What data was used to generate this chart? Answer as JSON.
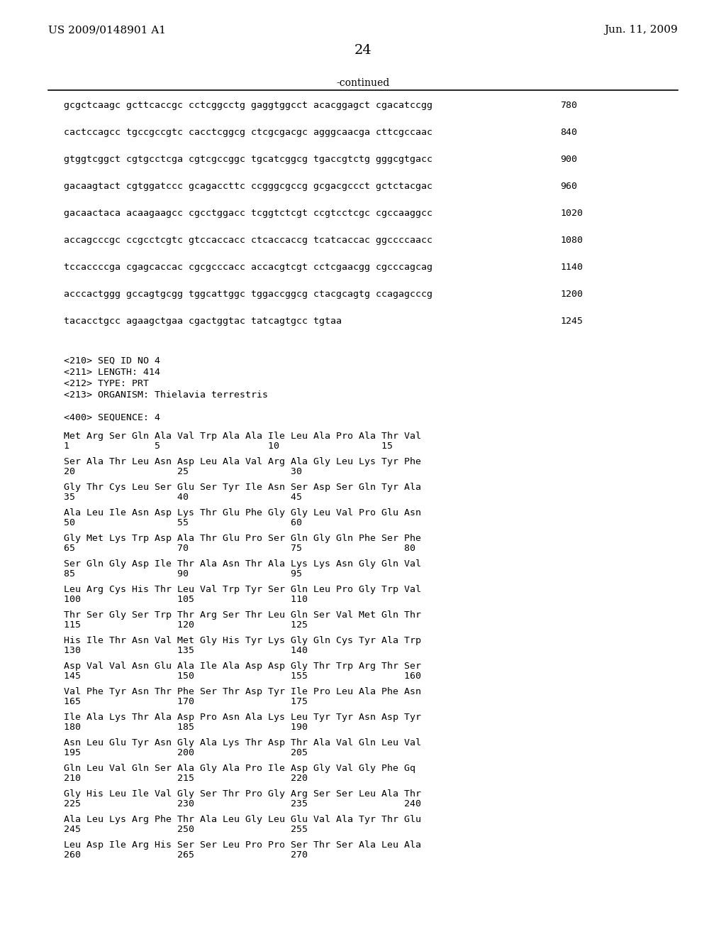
{
  "header_left": "US 2009/0148901 A1",
  "header_right": "Jun. 11, 2009",
  "page_number": "24",
  "continued_label": "-continued",
  "background_color": "#ffffff",
  "text_color": "#000000",
  "dna_lines": [
    [
      "gcgctcaagc gcttcaccgc cctcggcctg gaggtggcct acacggagct cgacatccgg",
      "780"
    ],
    [
      "cactccagcc tgccgccgtc cacctcggcg ctcgcgacgc agggcaacga cttcgccaac",
      "840"
    ],
    [
      "gtggtcggct cgtgcctcga cgtcgccggc tgcatcggcg tgaccgtctg gggcgtgacc",
      "900"
    ],
    [
      "gacaagtact cgtggatccc gcagaccttc ccgggcgccg gcgacgccct gctctacgac",
      "960"
    ],
    [
      "gacaactaca acaagaagcc cgcctggacc tcggtctcgt ccgtcctcgc cgccaaggcc",
      "1020"
    ],
    [
      "accagcccgc ccgcctcgtc gtccaccacc ctcaccaccg tcatcaccac ggccccaacc",
      "1080"
    ],
    [
      "tccaccccga cgagcaccac cgcgcccacc accacgtcgt cctcgaacgg cgcccagcag",
      "1140"
    ],
    [
      "acccactggg gccagtgcgg tggcattggc tggaccggcg ctacgcagtg ccagagcccg",
      "1200"
    ],
    [
      "tacacctgcc agaagctgaa cgactggtac tatcagtgcc tgtaa",
      "1245"
    ]
  ],
  "metadata_lines": [
    "<210> SEQ ID NO 4",
    "<211> LENGTH: 414",
    "<212> TYPE: PRT",
    "<213> ORGANISM: Thielavia terrestris"
  ],
  "sequence_label": "<400> SEQUENCE: 4",
  "protein_blocks": [
    {
      "seq_line": "Met Arg Ser Gln Ala Val Trp Ala Ala Ile Leu Ala Pro Ala Thr Val",
      "num_line": "1               5                   10                  15"
    },
    {
      "seq_line": "Ser Ala Thr Leu Asn Asp Leu Ala Val Arg Ala Gly Leu Lys Tyr Phe",
      "num_line": "20                  25                  30"
    },
    {
      "seq_line": "Gly Thr Cys Leu Ser Glu Ser Tyr Ile Asn Ser Asp Ser Gln Tyr Ala",
      "num_line": "35                  40                  45"
    },
    {
      "seq_line": "Ala Leu Ile Asn Asp Lys Thr Glu Phe Gly Gly Leu Val Pro Glu Asn",
      "num_line": "50                  55                  60"
    },
    {
      "seq_line": "Gly Met Lys Trp Asp Ala Thr Glu Pro Ser Gln Gly Gln Phe Ser Phe",
      "num_line": "65                  70                  75                  80"
    },
    {
      "seq_line": "Ser Gln Gly Asp Ile Thr Ala Asn Thr Ala Lys Lys Asn Gly Gln Val",
      "num_line": "85                  90                  95"
    },
    {
      "seq_line": "Leu Arg Cys His Thr Leu Val Trp Tyr Ser Gln Leu Pro Gly Trp Val",
      "num_line": "100                 105                 110"
    },
    {
      "seq_line": "Thr Ser Gly Ser Trp Thr Arg Ser Thr Leu Gln Ser Val Met Gln Thr",
      "num_line": "115                 120                 125"
    },
    {
      "seq_line": "His Ile Thr Asn Val Met Gly His Tyr Lys Gly Gln Cys Tyr Ala Trp",
      "num_line": "130                 135                 140"
    },
    {
      "seq_line": "Asp Val Val Asn Glu Ala Ile Ala Asp Asp Gly Thr Trp Arg Thr Ser",
      "num_line": "145                 150                 155                 160"
    },
    {
      "seq_line": "Val Phe Tyr Asn Thr Phe Ser Thr Asp Tyr Ile Pro Leu Ala Phe Asn",
      "num_line": "165                 170                 175"
    },
    {
      "seq_line": "Ile Ala Lys Thr Ala Asp Pro Asn Ala Lys Leu Tyr Tyr Asn Asp Tyr",
      "num_line": "180                 185                 190"
    },
    {
      "seq_line": "Asn Leu Glu Tyr Asn Gly Ala Lys Thr Asp Thr Ala Val Gln Leu Val",
      "num_line": "195                 200                 205"
    },
    {
      "seq_line": "Gln Leu Val Gln Ser Ala Gly Ala Pro Ile Asp Gly Val Gly Phe Gq",
      "num_line": "210                 215                 220"
    },
    {
      "seq_line": "Gly His Leu Ile Val Gly Ser Thr Pro Gly Arg Ser Ser Leu Ala Thr",
      "num_line": "225                 230                 235                 240"
    },
    {
      "seq_line": "Ala Leu Lys Arg Phe Thr Ala Leu Gly Leu Glu Val Ala Tyr Thr Glu",
      "num_line": "245                 250                 255"
    },
    {
      "seq_line": "Leu Asp Ile Arg His Ser Ser Leu Pro Pro Ser Thr Ser Ala Leu Ala",
      "num_line": "260                 265                 270"
    }
  ]
}
